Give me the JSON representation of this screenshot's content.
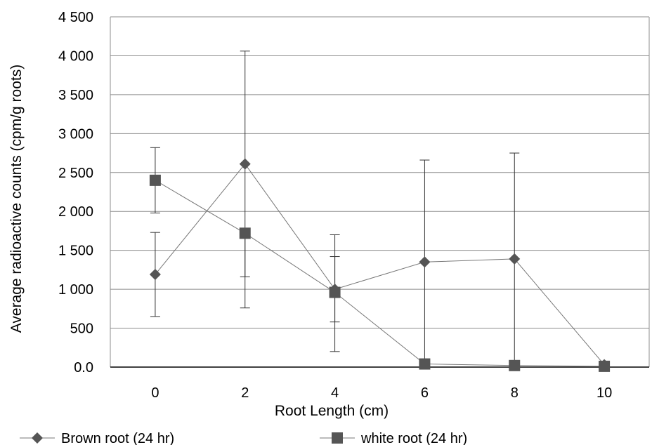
{
  "chart_data": {
    "type": "line",
    "title": "",
    "xlabel": "Root Length (cm)",
    "ylabel": "Average radioactive counts (cpm/g roots)",
    "x": [
      0,
      2,
      4,
      6,
      8,
      10
    ],
    "x_tick_labels": [
      "0",
      "2",
      "4",
      "6",
      "8",
      "10"
    ],
    "y_tick_labels": [
      "0.0",
      "500",
      "1 000",
      "1 500",
      "2 000",
      "2 500",
      "3 000",
      "3 500",
      "4 000",
      "4 500"
    ],
    "y_ticks": [
      0,
      500,
      1000,
      1500,
      2000,
      2500,
      3000,
      3500,
      4000,
      4500
    ],
    "ylim": [
      0,
      4500
    ],
    "grid": "horizontal",
    "legend_position": "bottom",
    "series": [
      {
        "name": "Brown root (24 hr)",
        "marker": "diamond",
        "color": "#555555",
        "values": [
          1190,
          2610,
          1000,
          1350,
          1390,
          30
        ],
        "error_high": [
          1730,
          4060,
          1700,
          2660,
          2750,
          30
        ],
        "error_low": [
          650,
          1160,
          580,
          0,
          0,
          30
        ]
      },
      {
        "name": "white root (24 hr)",
        "marker": "square",
        "color": "#555555",
        "values": [
          2400,
          1720,
          960,
          40,
          20,
          10
        ],
        "error_high": [
          2820,
          1720,
          1420,
          40,
          20,
          10
        ],
        "error_low": [
          1980,
          760,
          200,
          40,
          20,
          10
        ]
      }
    ]
  }
}
